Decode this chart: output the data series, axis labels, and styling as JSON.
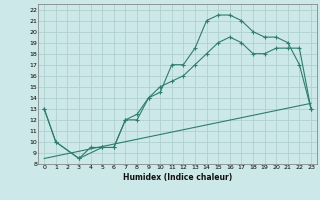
{
  "xlabel": "Humidex (Indice chaleur)",
  "bg_color": "#cce8e8",
  "line_color": "#2e7d6e",
  "grid_color": "#b0d0d0",
  "xlim": [
    -0.5,
    23.5
  ],
  "ylim": [
    8,
    22.5
  ],
  "xticks": [
    0,
    1,
    2,
    3,
    4,
    5,
    6,
    7,
    8,
    9,
    10,
    11,
    12,
    13,
    14,
    15,
    16,
    17,
    18,
    19,
    20,
    21,
    22,
    23
  ],
  "yticks": [
    8,
    9,
    10,
    11,
    12,
    13,
    14,
    15,
    16,
    17,
    18,
    19,
    20,
    21,
    22
  ],
  "curve1_x": [
    0,
    1,
    3,
    4,
    5,
    6,
    7,
    8,
    9,
    10,
    11,
    12,
    13,
    14,
    15,
    16,
    17,
    18,
    19,
    20,
    21,
    22,
    23
  ],
  "curve1_y": [
    13,
    10,
    8.5,
    9.5,
    9.5,
    9.5,
    12,
    12,
    14,
    14.5,
    17,
    17,
    18.5,
    21,
    21.5,
    21.5,
    21,
    20,
    19.5,
    19.5,
    19,
    17,
    13
  ],
  "curve2_x": [
    0,
    1,
    3,
    5,
    6,
    7,
    8,
    9,
    10,
    11,
    12,
    13,
    14,
    15,
    16,
    17,
    18,
    19,
    20,
    21,
    22,
    23
  ],
  "curve2_y": [
    13,
    10,
    8.5,
    9.5,
    9.5,
    12,
    12.5,
    14,
    15,
    15.5,
    16,
    17,
    18,
    19,
    19.5,
    19,
    18,
    18,
    18.5,
    18.5,
    18.5,
    13
  ],
  "curve3_x": [
    0,
    23
  ],
  "curve3_y": [
    8.5,
    13.5
  ]
}
